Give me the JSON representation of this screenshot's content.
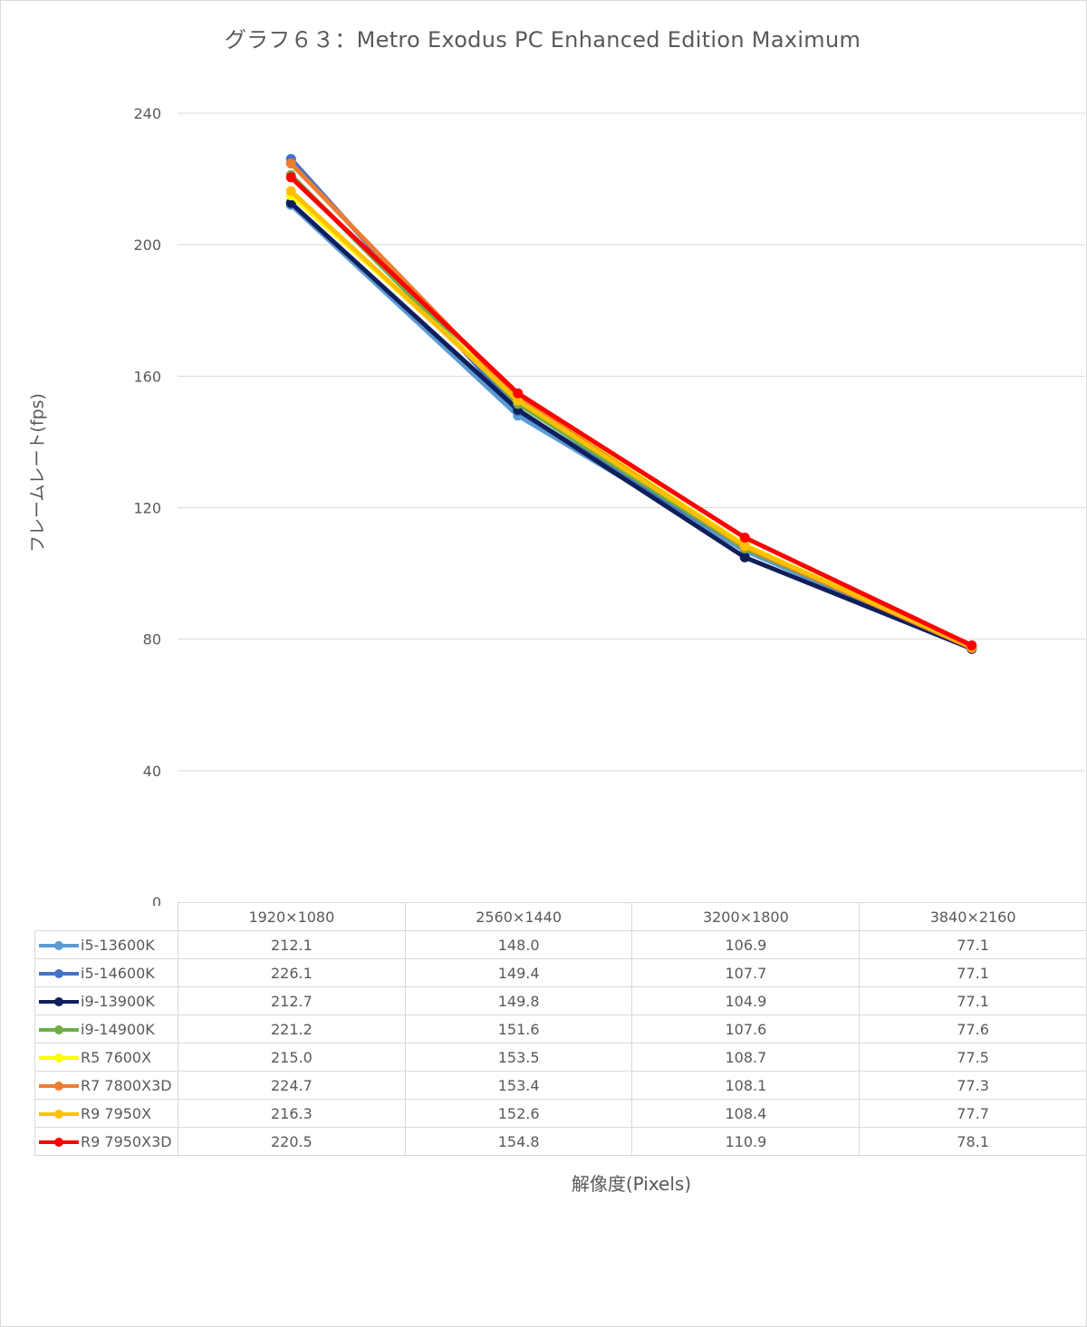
{
  "chart_data": {
    "type": "line",
    "title": "グラフ６３：Metro Exodus PC Enhanced Edition Maximum",
    "xlabel": "解像度(Pixels)",
    "ylabel": "フレームレート(fps)",
    "categories": [
      "1920×1080",
      "2560×1440",
      "3200×1800",
      "3840×2160"
    ],
    "ylim": [
      0,
      240
    ],
    "yticks": [
      "0",
      "40",
      "80",
      "120",
      "160",
      "200",
      "240"
    ],
    "grid": true,
    "legend": "data-table",
    "series": [
      {
        "name": "i5-13600K",
        "color": "#5b9bd5",
        "values": [
          212.1,
          148.0,
          106.9,
          77.1
        ],
        "labels": [
          "212.1",
          "148.0",
          "106.9",
          "77.1"
        ]
      },
      {
        "name": "i5-14600K",
        "color": "#4472c4",
        "values": [
          226.1,
          149.4,
          107.7,
          77.1
        ],
        "labels": [
          "226.1",
          "149.4",
          "107.7",
          "77.1"
        ]
      },
      {
        "name": "i9-13900K",
        "color": "#0f1f5c",
        "values": [
          212.7,
          149.8,
          104.9,
          77.1
        ],
        "labels": [
          "212.7",
          "149.8",
          "104.9",
          "77.1"
        ]
      },
      {
        "name": "i9-14900K",
        "color": "#70ad47",
        "values": [
          221.2,
          151.6,
          107.6,
          77.6
        ],
        "labels": [
          "221.2",
          "151.6",
          "107.6",
          "77.6"
        ]
      },
      {
        "name": "R5 7600X",
        "color": "#ffff00",
        "values": [
          215.0,
          153.5,
          108.7,
          77.5
        ],
        "labels": [
          "215.0",
          "153.5",
          "108.7",
          "77.5"
        ]
      },
      {
        "name": "R7 7800X3D",
        "color": "#ed7d31",
        "values": [
          224.7,
          153.4,
          108.1,
          77.3
        ],
        "labels": [
          "224.7",
          "153.4",
          "108.1",
          "77.3"
        ]
      },
      {
        "name": "R9 7950X",
        "color": "#ffc000",
        "values": [
          216.3,
          152.6,
          108.4,
          77.7
        ],
        "labels": [
          "216.3",
          "152.6",
          "108.4",
          "77.7"
        ]
      },
      {
        "name": "R9 7950X3D",
        "color": "#ff0000",
        "values": [
          220.5,
          154.8,
          110.9,
          78.1
        ],
        "labels": [
          "220.5",
          "154.8",
          "110.9",
          "78.1"
        ]
      }
    ]
  }
}
